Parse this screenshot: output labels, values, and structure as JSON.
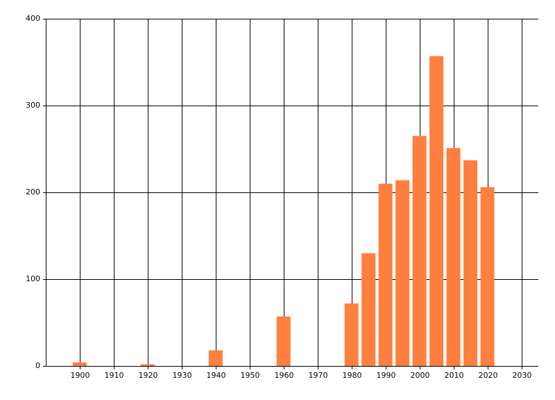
{
  "chart_data": {
    "type": "bar",
    "x": [
      1900,
      1920,
      1940,
      1960,
      1980,
      1985,
      1990,
      1995,
      2000,
      2005,
      2010,
      2015,
      2020
    ],
    "values": [
      4,
      2,
      18,
      57,
      72,
      130,
      210,
      214,
      265,
      357,
      251,
      237,
      206
    ],
    "color": "#ff7f3f",
    "xlim": [
      1890,
      2035
    ],
    "xticks": [
      1900,
      1910,
      1920,
      1930,
      1940,
      1950,
      1960,
      1970,
      1980,
      1990,
      2000,
      2010,
      2020,
      2030
    ],
    "ylim": [
      0,
      400
    ],
    "yticks": [
      0,
      100,
      200,
      300,
      400
    ],
    "grid": true
  }
}
